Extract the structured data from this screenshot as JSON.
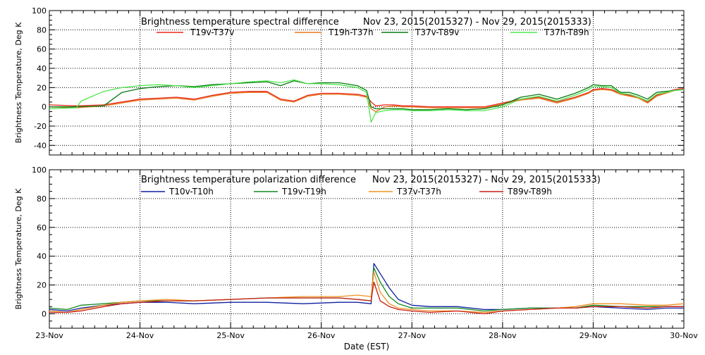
{
  "chart_data": [
    {
      "type": "line",
      "title": "Brightness temperature spectral difference",
      "subtitle": "Nov 23, 2015(2015327) - Nov 29, 2015(2015333)",
      "xlabel": "",
      "ylabel": "Brightness Temperature, Deg K",
      "ylim": [
        -50,
        100
      ],
      "yticks": [
        -40,
        -20,
        0,
        20,
        40,
        60,
        80,
        100
      ],
      "xlim": [
        0,
        7
      ],
      "grid": true,
      "legend": "top",
      "series": [
        {
          "name": "T19v-T37v",
          "color": "#e8281e",
          "x": [
            0,
            0.3,
            0.6,
            0.8,
            1.0,
            1.2,
            1.4,
            1.6,
            1.8,
            2.0,
            2.2,
            2.4,
            2.55,
            2.7,
            2.85,
            3.0,
            3.2,
            3.4,
            3.5,
            3.55,
            3.6,
            3.7,
            3.8,
            3.9,
            4.0,
            4.2,
            4.4,
            4.6,
            4.8,
            5.0,
            5.2,
            5.4,
            5.6,
            5.8,
            5.95,
            6.0,
            6.1,
            6.2,
            6.3,
            6.4,
            6.5,
            6.6,
            6.7,
            6.8,
            6.9,
            7.0
          ],
          "y": [
            2,
            1,
            2,
            5,
            8,
            9,
            10,
            8,
            12,
            15,
            16,
            16,
            8,
            6,
            12,
            14,
            14,
            13,
            11,
            5,
            1,
            2,
            2,
            1,
            1,
            0,
            0,
            0,
            0,
            4,
            8,
            10,
            5,
            10,
            15,
            18,
            19,
            18,
            14,
            12,
            10,
            5,
            12,
            15,
            18,
            19
          ]
        },
        {
          "name": "T19h-T37h",
          "color": "#e8781e",
          "x": [
            0,
            0.3,
            0.6,
            0.8,
            1.0,
            1.2,
            1.4,
            1.6,
            1.8,
            2.0,
            2.2,
            2.4,
            2.55,
            2.7,
            2.85,
            3.0,
            3.2,
            3.4,
            3.5,
            3.55,
            3.6,
            3.7,
            3.8,
            3.9,
            4.0,
            4.2,
            4.4,
            4.6,
            4.8,
            5.0,
            5.2,
            5.4,
            5.6,
            5.8,
            5.95,
            6.0,
            6.1,
            6.2,
            6.3,
            6.4,
            6.5,
            6.6,
            6.7,
            6.8,
            6.9,
            7.0
          ],
          "y": [
            0,
            -1,
            1,
            4,
            7,
            8,
            9,
            7,
            11,
            14,
            15,
            15,
            7,
            5,
            11,
            13,
            13,
            12,
            10,
            -2,
            -5,
            0,
            1,
            0,
            0,
            -1,
            -1,
            -1,
            -1,
            3,
            7,
            9,
            4,
            9,
            14,
            17,
            18,
            17,
            13,
            11,
            9,
            4,
            11,
            14,
            17,
            18
          ]
        },
        {
          "name": "T37v-T89v",
          "color": "#0a7a14",
          "x": [
            0,
            0.3,
            0.6,
            0.8,
            1.0,
            1.2,
            1.4,
            1.6,
            1.8,
            2.0,
            2.2,
            2.4,
            2.55,
            2.7,
            2.85,
            3.0,
            3.2,
            3.4,
            3.5,
            3.55,
            3.6,
            3.7,
            3.8,
            3.9,
            4.0,
            4.2,
            4.4,
            4.6,
            4.8,
            5.0,
            5.2,
            5.4,
            5.6,
            5.8,
            5.95,
            6.0,
            6.1,
            6.2,
            6.3,
            6.4,
            6.5,
            6.6,
            6.7,
            6.8,
            6.9,
            7.0
          ],
          "y": [
            0,
            0,
            1,
            15,
            19,
            21,
            22,
            21,
            23,
            24,
            25,
            26,
            22,
            27,
            24,
            25,
            25,
            22,
            17,
            0,
            -2,
            -2,
            -2,
            -2,
            -3,
            -3,
            -2,
            -3,
            -2,
            2,
            10,
            13,
            8,
            14,
            20,
            23,
            22,
            22,
            15,
            15,
            12,
            8,
            15,
            16,
            17,
            18
          ]
        },
        {
          "name": "T37h-T89h",
          "color": "#4ee84e",
          "x": [
            0,
            0.3,
            0.35,
            0.45,
            0.6,
            0.8,
            1.0,
            1.2,
            1.4,
            1.6,
            1.8,
            2.0,
            2.2,
            2.4,
            2.55,
            2.7,
            2.85,
            3.0,
            3.2,
            3.4,
            3.5,
            3.55,
            3.6,
            3.7,
            3.8,
            3.9,
            4.0,
            4.2,
            4.4,
            4.6,
            4.8,
            5.0,
            5.2,
            5.4,
            5.6,
            5.8,
            5.95,
            6.0,
            6.1,
            6.2,
            6.3,
            6.4,
            6.5,
            6.6,
            6.7,
            6.8,
            6.9,
            7.0
          ],
          "y": [
            -2,
            -1,
            6,
            10,
            16,
            20,
            22,
            23,
            22,
            20,
            22,
            24,
            26,
            27,
            25,
            28,
            24,
            24,
            23,
            20,
            15,
            -16,
            -6,
            -4,
            -3,
            -3,
            -4,
            -4,
            -3,
            -4,
            -4,
            0,
            8,
            11,
            6,
            12,
            18,
            21,
            21,
            20,
            14,
            13,
            10,
            6,
            13,
            15,
            17,
            18
          ]
        }
      ]
    },
    {
      "type": "line",
      "title": "Brightness temperature polarization difference",
      "subtitle": "Nov 23, 2015(2015327) - Nov 29, 2015(2015333)",
      "xlabel": "Date (EST)",
      "ylabel": "Brightness Temperature, Deg K",
      "ylim": [
        -10,
        100
      ],
      "yticks": [
        0,
        20,
        40,
        60,
        80,
        100
      ],
      "xlim": [
        0,
        7
      ],
      "xtick_labels": [
        "23-Nov",
        "24-Nov",
        "25-Nov",
        "26-Nov",
        "27-Nov",
        "28-Nov",
        "29-Nov",
        "30-Nov"
      ],
      "grid": true,
      "legend": "top",
      "series": [
        {
          "name": "T10v-T10h",
          "color": "#1020a0",
          "x": [
            0,
            0.2,
            0.35,
            0.6,
            0.8,
            1.0,
            1.3,
            1.6,
            2.0,
            2.4,
            2.8,
            3.2,
            3.4,
            3.55,
            3.58,
            3.65,
            3.75,
            3.85,
            4.0,
            4.2,
            4.5,
            4.8,
            5.0,
            5.3,
            5.6,
            5.8,
            6.0,
            6.3,
            6.6,
            6.8,
            7.0
          ],
          "y": [
            3,
            2,
            4,
            6,
            7,
            8,
            8,
            7,
            8,
            8,
            7,
            8,
            8,
            7,
            35,
            28,
            18,
            10,
            6,
            5,
            5,
            3,
            3,
            4,
            4,
            4,
            5,
            4,
            3,
            4,
            4
          ]
        },
        {
          "name": "T19v-T19h",
          "color": "#108a20",
          "x": [
            0,
            0.2,
            0.35,
            0.6,
            0.8,
            1.0,
            1.3,
            1.6,
            2.0,
            2.4,
            2.8,
            3.2,
            3.4,
            3.55,
            3.58,
            3.65,
            3.75,
            3.85,
            4.0,
            4.2,
            4.5,
            4.8,
            5.0,
            5.3,
            5.6,
            5.8,
            6.0,
            6.3,
            6.6,
            6.8,
            7.0
          ],
          "y": [
            4,
            3,
            6,
            7,
            8,
            9,
            9,
            9,
            10,
            11,
            11,
            11,
            10,
            9,
            32,
            22,
            12,
            7,
            4,
            4,
            4,
            2,
            3,
            4,
            4,
            4,
            6,
            5,
            5,
            5,
            5
          ]
        },
        {
          "name": "T37v-T37h",
          "color": "#f09020",
          "x": [
            0,
            0.2,
            0.35,
            0.6,
            0.8,
            1.0,
            1.3,
            1.6,
            2.0,
            2.4,
            2.8,
            3.2,
            3.4,
            3.55,
            3.58,
            3.65,
            3.75,
            3.85,
            4.0,
            4.2,
            4.5,
            4.8,
            5.0,
            5.3,
            5.6,
            5.8,
            6.0,
            6.3,
            6.6,
            6.8,
            7.0
          ],
          "y": [
            2,
            1,
            3,
            6,
            8,
            9,
            10,
            9,
            10,
            11,
            12,
            12,
            13,
            12,
            29,
            15,
            7,
            4,
            3,
            2,
            2,
            1,
            2,
            3,
            4,
            5,
            7,
            7,
            6,
            6,
            7
          ]
        },
        {
          "name": "T89v-T89h",
          "color": "#c81e14",
          "x": [
            0,
            0.2,
            0.35,
            0.6,
            0.8,
            1.0,
            1.3,
            1.6,
            2.0,
            2.4,
            2.8,
            3.2,
            3.4,
            3.55,
            3.58,
            3.65,
            3.75,
            3.85,
            4.0,
            4.2,
            4.5,
            4.8,
            5.0,
            5.3,
            5.6,
            5.8,
            6.0,
            6.3,
            6.6,
            6.8,
            7.0
          ],
          "y": [
            1,
            1,
            2,
            5,
            7,
            8,
            9,
            9,
            10,
            11,
            11,
            11,
            10,
            9,
            22,
            9,
            5,
            3,
            2,
            1,
            2,
            0,
            2,
            3,
            4,
            4,
            5,
            5,
            4,
            5,
            5
          ]
        }
      ]
    }
  ]
}
